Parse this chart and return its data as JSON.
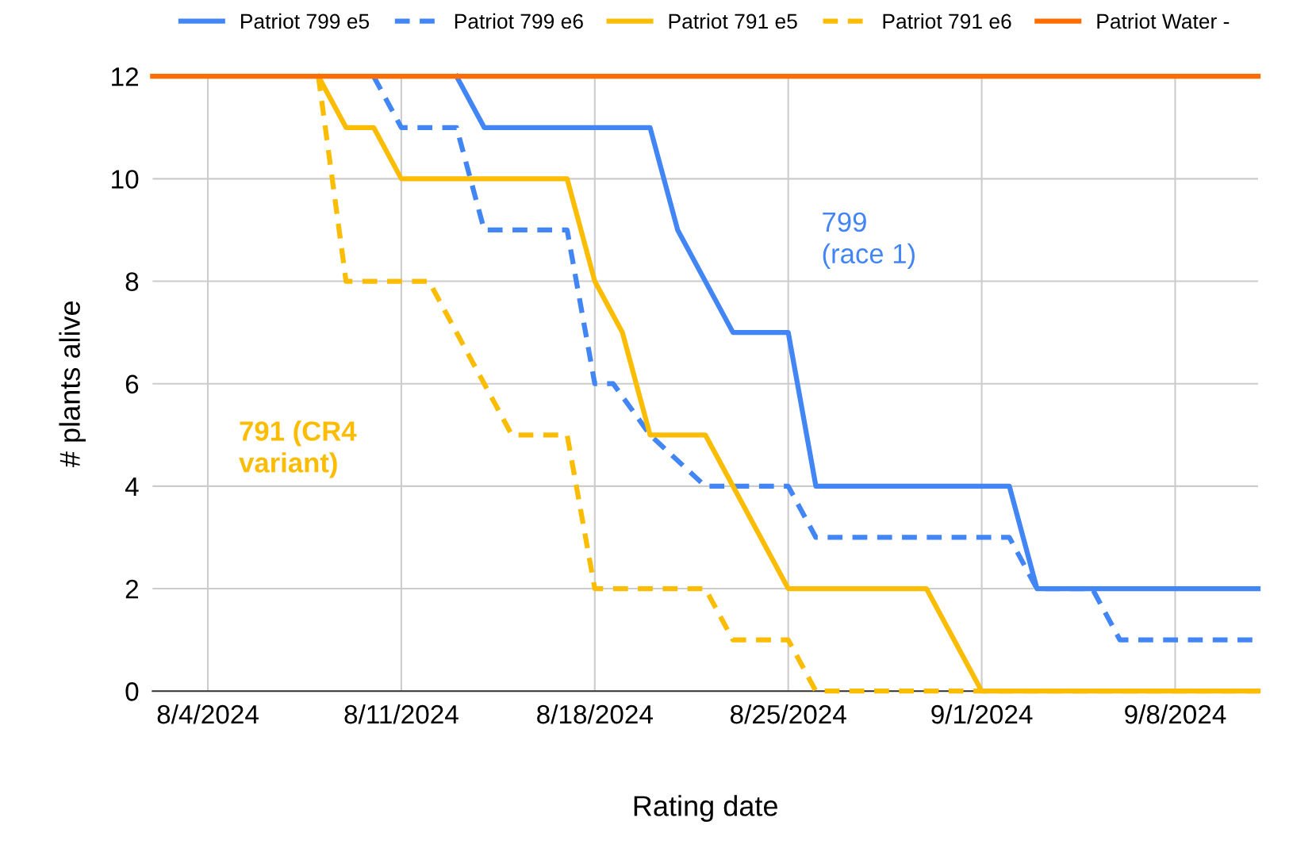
{
  "chart_data": {
    "type": "line",
    "xlabel": "Rating date",
    "ylabel": "# plants alive",
    "annotations": [
      "799\n(race 1)",
      "791 (CR4\nvariant)"
    ],
    "series": [
      {
        "name": "Patriot 799 e5",
        "color": "#4285f4",
        "line_style": "solid",
        "x": [
          "2024-08-13",
          "2024-08-14",
          "2024-08-20",
          "2024-08-21",
          "2024-08-23",
          "2024-08-25",
          "2024-08-26",
          "2024-09-02",
          "2024-09-03",
          "2024-09-11"
        ],
        "values": [
          12,
          11,
          11,
          9,
          7,
          7,
          4,
          4,
          2,
          2
        ]
      },
      {
        "name": "Patriot 799 e6",
        "color": "#4285f4",
        "line_style": "dashed",
        "x": [
          "2024-08-10",
          "2024-08-11",
          "2024-08-13",
          "2024-08-14",
          "2024-08-17",
          "2024-08-18",
          "2024-08-18T16:00",
          "2024-08-20",
          "2024-08-22",
          "2024-08-25",
          "2024-08-26",
          "2024-09-02",
          "2024-09-03",
          "2024-09-05",
          "2024-09-06",
          "2024-09-11"
        ],
        "values": [
          12,
          11,
          11,
          9,
          9,
          6,
          6,
          5,
          4,
          4,
          3,
          3,
          2,
          2,
          1,
          1
        ]
      },
      {
        "name": "Patriot 791 e5",
        "color": "#fbbc04",
        "line_style": "solid",
        "x": [
          "2024-08-08",
          "2024-08-09",
          "2024-08-10",
          "2024-08-11",
          "2024-08-17",
          "2024-08-18",
          "2024-08-19",
          "2024-08-20",
          "2024-08-22",
          "2024-08-25",
          "2024-08-30",
          "2024-09-01",
          "2024-09-11"
        ],
        "values": [
          12,
          11,
          11,
          10,
          10,
          8,
          7,
          5,
          5,
          2,
          2,
          0,
          0
        ]
      },
      {
        "name": "Patriot 791 e6",
        "color": "#fbbc04",
        "line_style": "dashed",
        "x": [
          "2024-08-08",
          "2024-08-09",
          "2024-08-12",
          "2024-08-14",
          "2024-08-15",
          "2024-08-17",
          "2024-08-18",
          "2024-08-22",
          "2024-08-23",
          "2024-08-25",
          "2024-08-26",
          "2024-09-11"
        ],
        "values": [
          12,
          8,
          8,
          6,
          5,
          5,
          2,
          2,
          1,
          1,
          0,
          0
        ]
      },
      {
        "name": "Patriot Water -",
        "color": "#ff6d01",
        "line_style": "solid",
        "x": [
          "2024-08-02",
          "2024-09-11"
        ],
        "values": [
          12,
          12
        ]
      }
    ],
    "xlim": [
      "2024-08-02",
      "2024-09-11"
    ],
    "xticks": [
      {
        "value": "2024-08-04",
        "label": "8/4/2024"
      },
      {
        "value": "2024-08-11",
        "label": "8/11/2024"
      },
      {
        "value": "2024-08-18",
        "label": "8/18/2024"
      },
      {
        "value": "2024-08-25",
        "label": "8/25/2024"
      },
      {
        "value": "2024-09-01",
        "label": "9/1/2024"
      },
      {
        "value": "2024-09-08",
        "label": "9/8/2024"
      }
    ],
    "ylim": [
      0,
      12
    ],
    "yticks": [
      0,
      2,
      4,
      6,
      8,
      10,
      12
    ],
    "grid": true,
    "legend": "top",
    "marker": "none"
  }
}
